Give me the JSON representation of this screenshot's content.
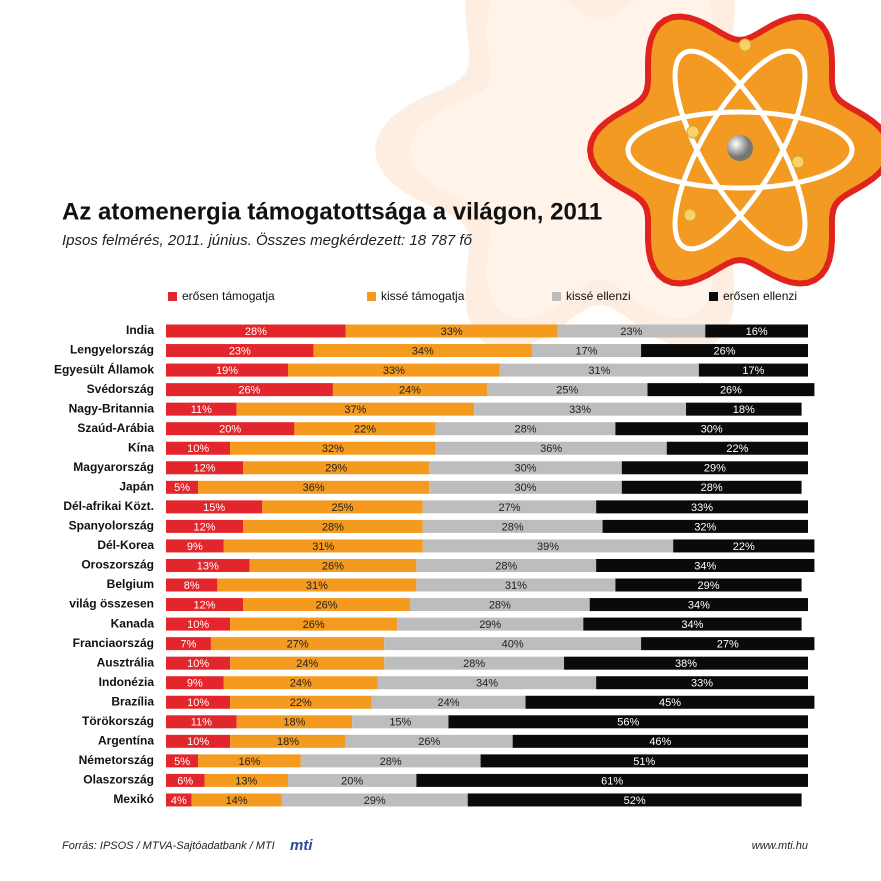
{
  "chart_data": {
    "type": "stacked-bar-horizontal",
    "title": "Az atomenergia támogatottsága a világon, 2011",
    "subtitle": "Ipsos felmérés, 2011. június. Összes megkérdezett: 18 787 fő",
    "xlim": [
      0,
      100
    ],
    "categories": [
      "India",
      "Lengyelország",
      "Egyesült Államok",
      "Svédország",
      "Nagy-Britannia",
      "Szaúd-Arábia",
      "Kína",
      "Magyarország",
      "Japán",
      "Dél-afrikai Közt.",
      "Spanyolország",
      "Dél-Korea",
      "Oroszország",
      "Belgium",
      "világ összesen",
      "Kanada",
      "Franciaország",
      "Ausztrália",
      "Indonézia",
      "Brazília",
      "Törökország",
      "Argentína",
      "Németország",
      "Olaszország",
      "Mexikó"
    ],
    "series": [
      {
        "name": "erősen támogatja",
        "color": "#e3262b",
        "values": [
          28,
          23,
          19,
          26,
          11,
          20,
          10,
          12,
          5,
          15,
          12,
          9,
          13,
          8,
          12,
          10,
          7,
          10,
          9,
          10,
          11,
          10,
          5,
          6,
          4
        ],
        "value_labels": [
          "28%",
          "23%",
          "19%",
          "26%",
          "11%",
          "20%",
          "10%",
          "12%",
          "5%",
          "15%",
          "12%",
          "9%",
          "13%",
          "8%",
          "12%",
          "10%",
          "7%",
          "10%",
          "9%",
          "10%",
          "11%",
          "10%",
          "5%",
          "6%",
          "4%"
        ]
      },
      {
        "name": "kissé támogatja",
        "color": "#f49b1f",
        "values": [
          33,
          34,
          33,
          24,
          37,
          22,
          32,
          29,
          36,
          25,
          28,
          31,
          26,
          31,
          26,
          26,
          27,
          24,
          24,
          22,
          18,
          18,
          16,
          13,
          14
        ],
        "value_labels": [
          "33%",
          "34%",
          "33%",
          "24%",
          "37%",
          "22%",
          "32%",
          "29%",
          "36%",
          "25%",
          "28%",
          "31%",
          "26%",
          "31%",
          "26%",
          "26%",
          "27%",
          "24%",
          "24%",
          "22%",
          "18%",
          "18%",
          "16%",
          "13%",
          "14%"
        ]
      },
      {
        "name": "kissé ellenzi",
        "color": "#bdbdbd",
        "values": [
          23,
          17,
          31,
          25,
          33,
          28,
          36,
          30,
          30,
          27,
          28,
          39,
          28,
          31,
          28,
          29,
          40,
          28,
          34,
          24,
          15,
          26,
          28,
          20,
          29
        ],
        "value_labels": [
          "23%",
          "17%",
          "31%",
          "25%",
          "33%",
          "28%",
          "36%",
          "30%",
          "30%",
          "27%",
          "28%",
          "39%",
          "28%",
          "31%",
          "28%",
          "29%",
          "40%",
          "28%",
          "34%",
          "24%",
          "15%",
          "26%",
          "28%",
          "20%",
          "29%"
        ]
      },
      {
        "name": "erősen ellenzi",
        "color": "#0a0a0a",
        "values": [
          16,
          26,
          17,
          26,
          18,
          30,
          22,
          29,
          28,
          33,
          32,
          22,
          34,
          29,
          34,
          34,
          27,
          38,
          33,
          45,
          56,
          46,
          51,
          61,
          52
        ],
        "value_labels": [
          "16%",
          "26%",
          "17%",
          "26%",
          "18%",
          "30%",
          "22%",
          "29%",
          "28%",
          "33%",
          "32%",
          "22%",
          "34%",
          "29%",
          "34%",
          "34%",
          "27%",
          "38%",
          "33%",
          "45%",
          "56%",
          "46%",
          "51%",
          "61%",
          "52%"
        ]
      }
    ],
    "source": "Forrás: IPSOS / MTVA-Sajtóadatbank / MTI",
    "logo": "mti",
    "website": "www.mti.hu"
  }
}
